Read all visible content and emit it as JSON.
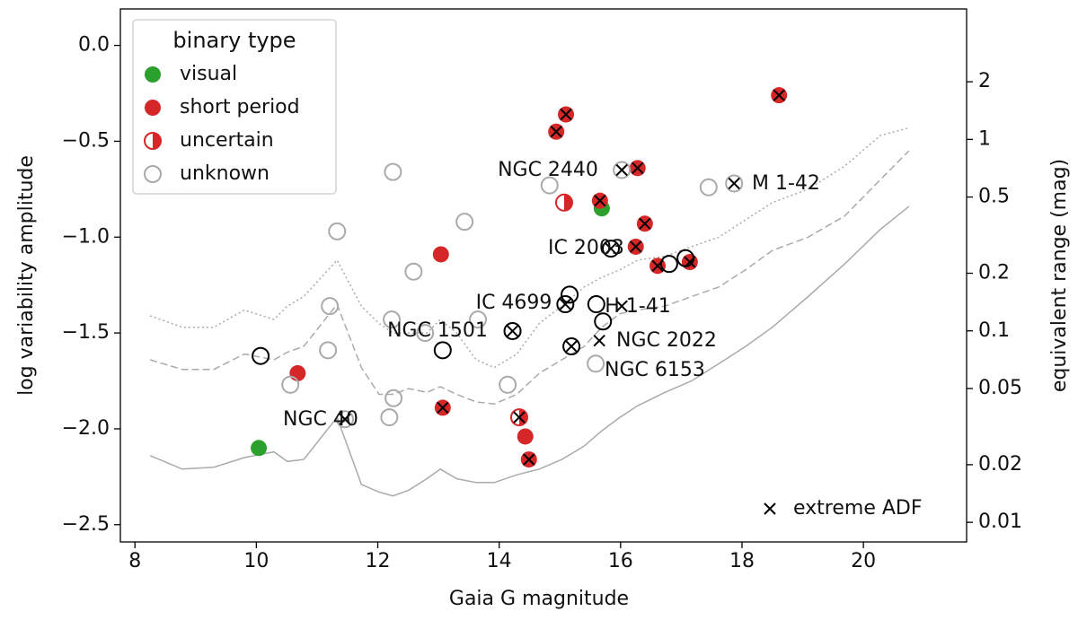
{
  "chart_data": {
    "type": "scatter",
    "xlabel": "Gaia G magnitude",
    "ylabel": "log variability amplitude",
    "y2label": "equivalent range (mag)",
    "xlim": [
      7.76,
      21.7
    ],
    "ylim": [
      -2.59,
      0.19
    ],
    "y2lim": [
      0.0079,
      4.8
    ],
    "y2scale": "log",
    "xticks": [
      8,
      10,
      12,
      14,
      16,
      18,
      20
    ],
    "yticks": [
      {
        "value": 0.0,
        "label": "0.0"
      },
      {
        "value": -0.5,
        "label": "−0.5"
      },
      {
        "value": -1.0,
        "label": "−1.0"
      },
      {
        "value": -1.5,
        "label": "−1.5"
      },
      {
        "value": -2.0,
        "label": "−2.0"
      },
      {
        "value": -2.5,
        "label": "−2.5"
      }
    ],
    "y2ticks": [
      2,
      1,
      0.5,
      0.2,
      0.1,
      0.05,
      0.02,
      0.01
    ],
    "legend_title": "binary type",
    "legend_loc": "upper left",
    "series": [
      {
        "name": "visual",
        "color": "#2ca02c",
        "marker": "filled",
        "x": [
          10.04,
          15.69
        ],
        "y": [
          -2.1,
          -0.85
        ]
      },
      {
        "name": "short period",
        "color": "#d62728",
        "marker": "filled",
        "x": [
          13.04,
          10.68,
          14.94,
          15.1,
          15.66,
          16.28,
          16.4,
          16.25,
          16.61,
          17.14,
          18.61,
          13.07,
          14.43,
          14.49
        ],
        "y": [
          -1.09,
          -1.71,
          -0.45,
          -0.36,
          -0.81,
          -0.64,
          -0.93,
          -1.05,
          -1.15,
          -1.13,
          -0.26,
          -1.89,
          -2.04,
          -2.16
        ]
      },
      {
        "name": "uncertain",
        "color": "#d62728",
        "marker": "half",
        "x": [
          15.07,
          14.33
        ],
        "y": [
          -0.82,
          -1.94
        ]
      },
      {
        "name": "unknown",
        "color": "#aaaaaa",
        "marker": "open",
        "x": [
          12.25,
          11.33,
          11.21,
          11.18,
          12.59,
          13.43,
          12.23,
          13.65,
          12.78,
          12.26,
          12.19,
          10.56,
          11.46,
          14.14,
          14.83,
          16.02,
          15.59,
          17.45,
          17.87
        ],
        "y": [
          -0.66,
          -0.97,
          -1.36,
          -1.59,
          -1.18,
          -0.92,
          -1.43,
          -1.43,
          -1.5,
          -1.84,
          -1.94,
          -1.77,
          -1.95,
          -1.77,
          -0.73,
          -0.65,
          -1.66,
          -0.74,
          -0.72
        ]
      },
      {
        "color": "#000000",
        "marker": "open",
        "x": [
          10.07,
          13.07,
          14.22,
          15.16,
          15.09,
          15.6,
          15.71,
          15.19,
          15.84,
          16.8,
          17.07
        ],
        "y": [
          -1.62,
          -1.59,
          -1.49,
          -1.3,
          -1.35,
          -1.35,
          -1.44,
          -1.57,
          -1.06,
          -1.14,
          -1.11
        ]
      },
      {
        "name": "extreme ADF",
        "color": "#000000",
        "marker": "x",
        "x": [
          15.1,
          14.94,
          15.66,
          16.28,
          16.4,
          16.25,
          16.61,
          17.14,
          18.61,
          13.07,
          14.49,
          14.33,
          11.46,
          16.02,
          17.87,
          14.22,
          15.09,
          15.19,
          15.84,
          15.65,
          16.02
        ],
        "y": [
          -0.36,
          -0.45,
          -0.81,
          -0.64,
          -0.93,
          -1.05,
          -1.15,
          -1.13,
          -0.26,
          -1.89,
          -2.16,
          -1.94,
          -1.95,
          -0.65,
          -0.72,
          -1.49,
          -1.35,
          -1.57,
          -1.06,
          -1.54,
          -1.36
        ]
      }
    ],
    "lines": [
      {
        "style": "solid",
        "color": "#aaaaaa",
        "x": [
          8.25,
          8.78,
          9.3,
          9.8,
          10.29,
          10.51,
          10.78,
          11.33,
          11.73,
          12.02,
          12.25,
          12.51,
          12.81,
          13.03,
          13.3,
          13.62,
          13.92,
          14.29,
          14.66,
          15.03,
          15.4,
          15.69,
          15.99,
          16.28,
          16.73,
          17.17,
          17.62,
          18.06,
          18.5,
          19.09,
          19.69,
          20.28,
          20.75
        ],
        "y": [
          -2.14,
          -2.21,
          -2.2,
          -2.15,
          -2.12,
          -2.17,
          -2.16,
          -1.94,
          -2.29,
          -2.33,
          -2.35,
          -2.32,
          -2.26,
          -2.21,
          -2.26,
          -2.28,
          -2.28,
          -2.24,
          -2.21,
          -2.16,
          -2.09,
          -2.01,
          -1.94,
          -1.88,
          -1.81,
          -1.75,
          -1.66,
          -1.57,
          -1.47,
          -1.31,
          -1.14,
          -0.96,
          -0.84
        ]
      },
      {
        "style": "dashed",
        "color": "#aaaaaa",
        "x": [
          8.25,
          8.78,
          9.3,
          9.8,
          10.29,
          10.51,
          10.78,
          11.33,
          11.73,
          12.02,
          12.25,
          12.51,
          12.81,
          13.03,
          13.3,
          13.62,
          13.92,
          14.29,
          14.66,
          15.03,
          15.4,
          15.69,
          15.99,
          16.28,
          16.73,
          17.17,
          17.62,
          18.06,
          18.5,
          19.09,
          19.69,
          20.28,
          20.75
        ],
        "y": [
          -1.64,
          -1.69,
          -1.69,
          -1.61,
          -1.64,
          -1.6,
          -1.57,
          -1.35,
          -1.68,
          -1.82,
          -1.82,
          -1.79,
          -1.81,
          -1.78,
          -1.82,
          -1.86,
          -1.87,
          -1.82,
          -1.71,
          -1.64,
          -1.57,
          -1.47,
          -1.4,
          -1.38,
          -1.36,
          -1.31,
          -1.26,
          -1.17,
          -1.07,
          -1.0,
          -0.89,
          -0.7,
          -0.55
        ]
      },
      {
        "style": "dotted",
        "color": "#aaaaaa",
        "x": [
          8.25,
          8.78,
          9.3,
          9.8,
          10.29,
          10.51,
          10.78,
          11.33,
          11.73,
          12.02,
          12.25,
          12.51,
          12.81,
          13.03,
          13.3,
          13.62,
          13.92,
          14.29,
          14.66,
          15.03,
          15.4,
          15.69,
          15.99,
          16.28,
          16.73,
          17.17,
          17.62,
          18.06,
          18.5,
          19.09,
          19.69,
          20.28,
          20.75
        ],
        "y": [
          -1.41,
          -1.47,
          -1.47,
          -1.38,
          -1.43,
          -1.36,
          -1.31,
          -1.12,
          -1.36,
          -1.45,
          -1.5,
          -1.5,
          -1.5,
          -1.43,
          -1.5,
          -1.64,
          -1.68,
          -1.61,
          -1.45,
          -1.36,
          -1.26,
          -1.21,
          -1.17,
          -1.12,
          -1.1,
          -1.05,
          -1.0,
          -0.91,
          -0.82,
          -0.75,
          -0.63,
          -0.47,
          -0.43
        ]
      }
    ],
    "annotations": [
      "NGC 2440",
      "M 1-42",
      "IC 2003",
      "IC 4699",
      "H 1-41",
      "NGC 1501",
      "NGC 2022",
      "NGC 6153",
      "NGC 40"
    ]
  }
}
